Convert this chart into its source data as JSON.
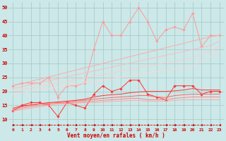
{
  "background_color": "#cce8e8",
  "grid_color": "#aacccc",
  "xlabel": "Vent moyen/en rafales ( km/h )",
  "xlim": [
    -0.5,
    23.5
  ],
  "ylim": [
    7,
    52
  ],
  "yticks": [
    10,
    15,
    20,
    25,
    30,
    35,
    40,
    45,
    50
  ],
  "xticks": [
    0,
    1,
    2,
    3,
    4,
    5,
    6,
    7,
    8,
    9,
    10,
    11,
    12,
    13,
    14,
    15,
    16,
    17,
    18,
    19,
    20,
    21,
    22,
    23
  ],
  "series": [
    {
      "color": "#ff9999",
      "linewidth": 0.7,
      "marker": "D",
      "markersize": 1.8,
      "linestyle": "-",
      "values": [
        22,
        23,
        23,
        23,
        25,
        18,
        22,
        22,
        23,
        35,
        45,
        40,
        40,
        45,
        50,
        45,
        38,
        42,
        43,
        42,
        48,
        36,
        40,
        40
      ]
    },
    {
      "color": "#ffaaaa",
      "linewidth": 0.7,
      "marker": null,
      "markersize": 0,
      "linestyle": "-",
      "values": [
        22.0,
        22.8,
        23.6,
        24.4,
        25.2,
        26.0,
        26.8,
        27.6,
        28.4,
        29.2,
        30.0,
        30.8,
        31.6,
        32.4,
        33.2,
        34.0,
        34.8,
        35.6,
        36.4,
        37.2,
        38.0,
        38.8,
        39.6,
        40.0
      ]
    },
    {
      "color": "#ffbbbb",
      "linewidth": 0.7,
      "marker": null,
      "markersize": 0,
      "linestyle": "-",
      "values": [
        21.0,
        21.7,
        22.4,
        23.1,
        23.8,
        24.5,
        25.2,
        25.9,
        26.6,
        27.3,
        28.0,
        28.7,
        29.4,
        30.1,
        30.8,
        31.5,
        32.2,
        32.9,
        33.6,
        34.3,
        35.0,
        35.7,
        36.4,
        38.0
      ]
    },
    {
      "color": "#ffcccc",
      "linewidth": 0.7,
      "marker": null,
      "markersize": 0,
      "linestyle": "-",
      "values": [
        20.0,
        20.6,
        21.2,
        21.8,
        22.4,
        23.0,
        23.6,
        24.2,
        24.8,
        25.4,
        26.0,
        26.6,
        27.2,
        27.8,
        28.4,
        29.0,
        29.6,
        30.2,
        30.8,
        31.4,
        32.0,
        33.5,
        34.5,
        36.0
      ]
    },
    {
      "color": "#ffd5d5",
      "linewidth": 0.7,
      "marker": null,
      "markersize": 0,
      "linestyle": "-",
      "values": [
        19.0,
        19.5,
        20.0,
        20.5,
        21.0,
        21.5,
        22.0,
        22.5,
        23.0,
        23.5,
        24.0,
        24.5,
        25.0,
        25.5,
        26.0,
        26.5,
        27.0,
        27.5,
        28.0,
        28.5,
        29.0,
        31.0,
        32.5,
        34.0
      ]
    },
    {
      "color": "#ff3333",
      "linewidth": 0.7,
      "marker": "D",
      "markersize": 1.8,
      "linestyle": "-",
      "values": [
        13,
        15,
        16,
        16,
        15,
        11,
        16,
        15,
        14,
        19,
        22,
        20,
        21,
        24,
        24,
        19,
        18,
        17,
        22,
        22,
        22,
        19,
        20,
        20
      ]
    },
    {
      "color": "#ff3333",
      "linewidth": 0.7,
      "marker": null,
      "markersize": 0,
      "linestyle": "-",
      "values": [
        14.0,
        14.8,
        15.2,
        15.6,
        16.0,
        16.2,
        16.5,
        16.8,
        17.2,
        18.0,
        18.5,
        18.8,
        19.0,
        19.5,
        19.8,
        20.0,
        20.0,
        20.0,
        20.2,
        20.5,
        21.0,
        20.5,
        20.5,
        20.5
      ]
    },
    {
      "color": "#ff6666",
      "linewidth": 0.7,
      "marker": null,
      "markersize": 0,
      "linestyle": "-",
      "values": [
        13.5,
        14.5,
        15.0,
        15.5,
        15.8,
        16.0,
        16.2,
        16.5,
        16.8,
        17.2,
        17.5,
        17.8,
        18.0,
        18.2,
        18.5,
        18.5,
        18.0,
        17.8,
        18.5,
        18.8,
        19.0,
        19.0,
        19.0,
        19.0
      ]
    },
    {
      "color": "#ff8888",
      "linewidth": 0.7,
      "marker": null,
      "markersize": 0,
      "linestyle": "-",
      "values": [
        13.0,
        14.0,
        14.5,
        15.0,
        15.5,
        15.8,
        15.8,
        16.0,
        16.3,
        16.5,
        16.8,
        17.0,
        17.2,
        17.5,
        17.5,
        17.0,
        17.0,
        17.0,
        17.5,
        17.8,
        18.0,
        18.0,
        18.0,
        18.0
      ]
    },
    {
      "color": "#ffaaaa",
      "linewidth": 0.7,
      "marker": null,
      "markersize": 0,
      "linestyle": "-",
      "values": [
        13.0,
        13.5,
        14.0,
        14.5,
        15.0,
        15.5,
        15.5,
        15.8,
        16.0,
        16.0,
        16.2,
        16.5,
        16.5,
        16.8,
        16.8,
        16.5,
        16.5,
        16.5,
        16.8,
        17.0,
        17.0,
        17.0,
        17.0,
        17.0
      ]
    },
    {
      "color": "#cc0000",
      "linewidth": 0.6,
      "marker": "<",
      "markersize": 2.0,
      "linestyle": "--",
      "values": [
        8,
        8,
        8,
        8,
        8,
        8,
        8,
        8,
        8,
        8,
        8,
        8,
        8,
        8,
        8,
        8,
        8,
        8,
        8,
        8,
        8,
        8,
        8,
        8
      ]
    }
  ]
}
